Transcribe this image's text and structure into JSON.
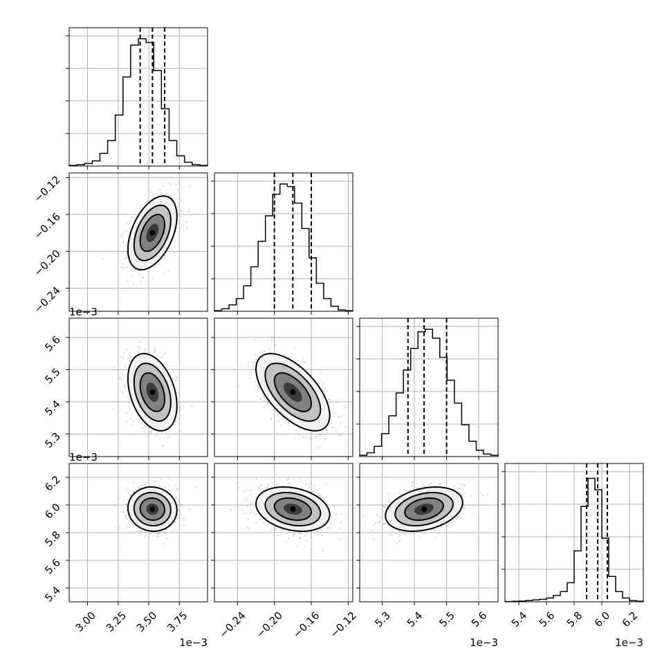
{
  "chart_data": {
    "type": "corner",
    "grid": true,
    "parameters": [
      {
        "index": 0,
        "range": [
          2.85,
          3.98
        ],
        "ticks": [
          3.0,
          3.25,
          3.5,
          3.75
        ],
        "tick_labels": [
          "3.00",
          "3.25",
          "3.50",
          "3.75"
        ],
        "offset_label": "1e−3",
        "hist_values": [
          0.005,
          0.01,
          0.02,
          0.04,
          0.1,
          0.2,
          0.4,
          0.7,
          0.95,
          1.0,
          0.97,
          0.75,
          0.45,
          0.2,
          0.08,
          0.03,
          0.01,
          0.005
        ],
        "quantiles": [
          3.43,
          3.53,
          3.63
        ],
        "mean": 3.53,
        "sd": 0.1
      },
      {
        "index": 1,
        "range": [
          -0.265,
          -0.115
        ],
        "ticks": [
          -0.24,
          -0.2,
          -0.16,
          -0.12
        ],
        "tick_labels": [
          "−0.24",
          "−0.20",
          "−0.16",
          "−0.12"
        ],
        "offset_label": "",
        "hist_values": [
          0.005,
          0.02,
          0.05,
          0.1,
          0.2,
          0.35,
          0.55,
          0.75,
          0.92,
          1.0,
          0.98,
          0.85,
          0.65,
          0.42,
          0.22,
          0.1,
          0.04,
          0.01,
          0.005
        ],
        "quantiles": [
          -0.2,
          -0.18,
          -0.16
        ],
        "mean": -0.18,
        "sd": 0.02
      },
      {
        "index": 2,
        "range": [
          5.23,
          5.66
        ],
        "ticks": [
          5.3,
          5.4,
          5.5,
          5.6
        ],
        "tick_labels": [
          "5.3",
          "5.4",
          "5.5",
          "5.6"
        ],
        "offset_label": "1e−3",
        "hist_values": [
          0.01,
          0.03,
          0.08,
          0.18,
          0.32,
          0.5,
          0.68,
          0.85,
          0.98,
          1.0,
          0.93,
          0.78,
          0.6,
          0.42,
          0.25,
          0.12,
          0.05,
          0.02,
          0.01
        ],
        "quantiles": [
          5.38,
          5.43,
          5.5
        ],
        "mean": 5.43,
        "sd": 0.06
      },
      {
        "index": 3,
        "range": [
          5.3,
          6.3
        ],
        "ticks": [
          5.4,
          5.6,
          5.8,
          6.0,
          6.2
        ],
        "tick_labels": [
          "5.4",
          "5.6",
          "5.8",
          "6.0",
          "6.2"
        ],
        "offset_label": "1e−3",
        "hist_values": [
          0.002,
          0.004,
          0.006,
          0.01,
          0.015,
          0.02,
          0.03,
          0.05,
          0.08,
          0.15,
          0.4,
          0.75,
          0.97,
          0.88,
          0.5,
          0.2,
          0.08,
          0.03,
          0.01,
          0.005
        ],
        "quantiles": [
          5.89,
          5.97,
          6.04
        ],
        "mean": 5.97,
        "sd": 0.08
      }
    ],
    "pair_correlations": [
      {
        "row": 1,
        "col": 0,
        "rho": 0.45
      },
      {
        "row": 2,
        "col": 0,
        "rho": -0.35
      },
      {
        "row": 2,
        "col": 1,
        "rho": -0.6
      },
      {
        "row": 3,
        "col": 0,
        "rho": -0.05
      },
      {
        "row": 3,
        "col": 1,
        "rho": -0.25
      },
      {
        "row": 3,
        "col": 2,
        "rho": 0.3
      }
    ],
    "contour_levels_sigma": [
      0.5,
      1.0,
      1.5,
      2.0
    ]
  }
}
